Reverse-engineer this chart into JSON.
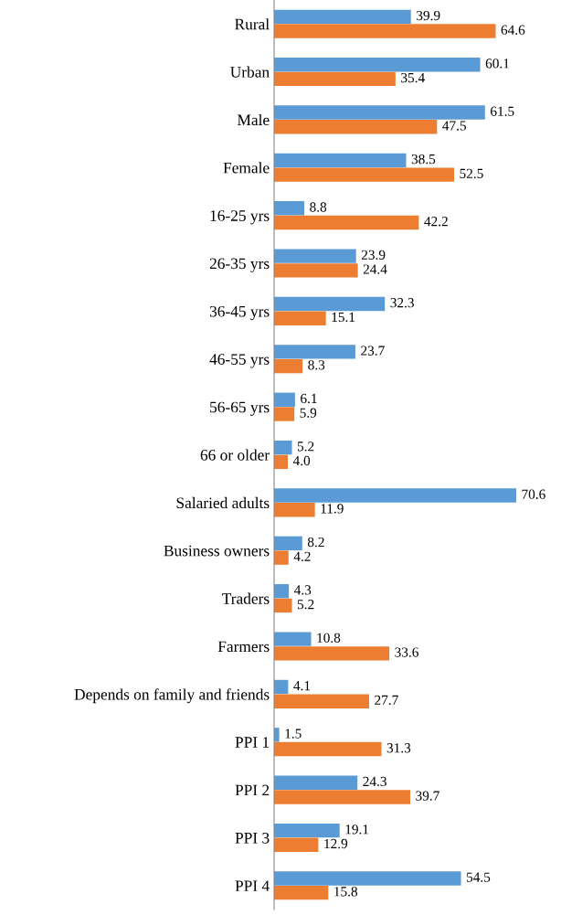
{
  "chart_data": {
    "type": "bar",
    "orientation": "horizontal",
    "categories": [
      "Rural",
      "Urban",
      "Male",
      "Female",
      "16-25 yrs",
      "26-35 yrs",
      "36-45 yrs",
      "46-55 yrs",
      "56-65 yrs",
      "66 or older",
      "Salaried adults",
      "Business owners",
      "Traders",
      "Farmers",
      "Depends on family and friends",
      "PPI 1",
      "PPI 2",
      "PPI 3",
      "PPI 4"
    ],
    "series": [
      {
        "color": "#5b9bd5",
        "values": [
          39.9,
          60.1,
          61.5,
          38.5,
          8.8,
          23.9,
          32.3,
          23.7,
          6.1,
          5.2,
          70.6,
          8.2,
          4.3,
          10.8,
          4.1,
          1.5,
          24.3,
          19.1,
          54.5
        ],
        "value_labels": [
          "39.9",
          "60.1",
          "61.5",
          "38.5",
          "8.8",
          "23.9",
          "32.3",
          "23.7",
          "6.1",
          "5.2",
          "70.6",
          "8.2",
          "4.3",
          "10.8",
          "4.1",
          "1.5",
          "24.3",
          "19.1",
          "54.5"
        ]
      },
      {
        "color": "#ed7d31",
        "values": [
          64.6,
          35.4,
          47.5,
          52.5,
          42.2,
          24.4,
          15.1,
          8.3,
          5.9,
          4.0,
          11.9,
          4.2,
          5.2,
          33.6,
          27.7,
          31.3,
          39.7,
          12.9,
          15.8
        ],
        "value_labels": [
          "64.6",
          "35.4",
          "47.5",
          "52.5",
          "42.2",
          "24.4",
          "15.1",
          "8.3",
          "5.9",
          "4.0",
          "11.9",
          "4.2",
          "5.2",
          "33.6",
          "27.7",
          "31.3",
          "39.7",
          "12.9",
          "15.8"
        ]
      }
    ],
    "tick_labels": "y",
    "grid": false,
    "legend": false
  }
}
